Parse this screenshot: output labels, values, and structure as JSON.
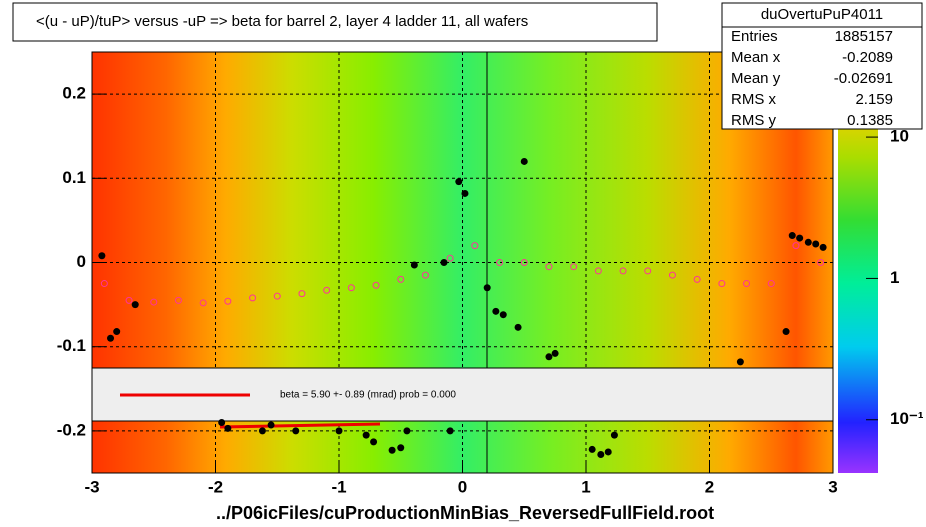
{
  "chart_data": {
    "type": "scatter",
    "title": "<(u - uP)/tuP> versus  -uP => beta for barrel 2, layer 4 ladder 11, all wafers",
    "x_label": "../P06icFiles/cuProductionMinBias_ReversedFullField.root",
    "xlim": [
      -3,
      3
    ],
    "xticks": [
      -3,
      -2,
      -1,
      0,
      1,
      2,
      3
    ],
    "ylim": [
      -0.25,
      0.25
    ],
    "yticks": [
      -0.2,
      -0.1,
      0,
      0.1,
      0.2
    ],
    "grid": true,
    "zscale": "log",
    "zlim": [
      0.042,
      40
    ],
    "zticks": [
      {
        "value": 0.1,
        "label": "10⁻¹"
      },
      1,
      10
    ],
    "series": [
      {
        "color": "#000000",
        "x": [
          -2.92,
          -2.85,
          -2.8,
          -2.65,
          -1.95,
          -1.9,
          -1.62,
          -1.55,
          -1.35,
          -1.0,
          -0.78,
          -0.72,
          -0.57,
          -0.5,
          -0.45,
          -0.39,
          -0.15,
          -0.1,
          -0.03,
          0.02,
          0.2,
          0.27,
          0.33,
          0.45,
          0.5,
          0.7,
          0.75,
          1.05,
          1.12,
          1.18,
          1.23,
          2.25,
          2.62,
          2.67,
          2.73,
          2.8,
          2.86,
          2.92
        ],
        "values": [
          0.008,
          -0.09,
          -0.082,
          -0.05,
          -0.19,
          -0.197,
          -0.2,
          -0.193,
          -0.2,
          -0.2,
          -0.205,
          -0.213,
          -0.223,
          -0.22,
          -0.2,
          -0.003,
          0.0,
          -0.2,
          0.096,
          0.082,
          -0.03,
          -0.058,
          -0.062,
          -0.077,
          0.12,
          -0.112,
          -0.108,
          -0.222,
          -0.228,
          -0.225,
          -0.205,
          -0.118,
          -0.082,
          0.032,
          0.029,
          0.024,
          0.022,
          0.018
        ]
      },
      {
        "color": "#ff3399",
        "x": [
          -2.9,
          -2.7,
          -2.5,
          -2.3,
          -2.1,
          -1.9,
          -1.7,
          -1.5,
          -1.3,
          -1.1,
          -0.9,
          -0.7,
          -0.5,
          -0.3,
          -0.1,
          0.1,
          0.3,
          0.5,
          0.7,
          0.9,
          1.1,
          1.3,
          1.5,
          1.7,
          1.9,
          2.1,
          2.3,
          2.5,
          2.7,
          2.9
        ],
        "values": [
          -0.025,
          -0.045,
          -0.047,
          -0.045,
          -0.048,
          -0.046,
          -0.042,
          -0.04,
          -0.037,
          -0.033,
          -0.03,
          -0.027,
          -0.02,
          -0.015,
          0.005,
          0.02,
          0.0,
          0.0,
          -0.005,
          -0.005,
          -0.01,
          -0.01,
          -0.01,
          -0.015,
          -0.02,
          -0.025,
          -0.025,
          -0.025,
          0.02,
          0.0
        ]
      }
    ],
    "fit_label": "beta =    5.90 +-  0.89 (mrad) prob = 0.000",
    "stats": {
      "title": "duOvertuPuP4011",
      "rows": [
        [
          "Entries",
          "1885157"
        ],
        [
          "Mean x",
          "-0.2089"
        ],
        [
          "Mean y",
          "-0.02691"
        ],
        [
          "RMS x",
          "2.159"
        ],
        [
          "RMS y",
          "0.1385"
        ]
      ]
    }
  }
}
